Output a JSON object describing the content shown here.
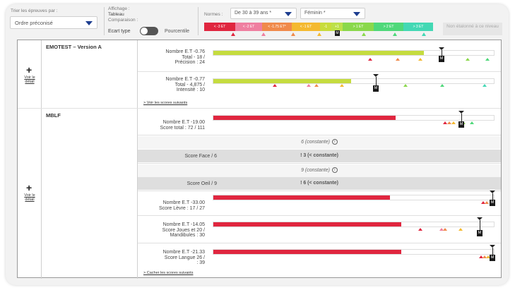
{
  "toolbar": {
    "sort_label": "Trier les épreuves par :",
    "sort_value": "Ordre préconisé",
    "display_label": "Affichage :",
    "display_value": "Tableau",
    "compare_label": "Comparaison :",
    "compare_off": "Ecart type",
    "compare_on": "Pourcentile",
    "norms_label": "Normes :",
    "age_value": "De 30 à 39 ans *",
    "sex_value": "Féminin *",
    "scale": [
      {
        "label": "< -3 ET",
        "color": "#e0263f"
      },
      {
        "label": "< -2 ET",
        "color": "#ef7fa0"
      },
      {
        "label": "< -1.75 ET*",
        "color": "#f08a4b"
      },
      {
        "label": "< -1 ET",
        "color": "#f4b930"
      },
      {
        "label": "-1",
        "color": "#c8dc3c"
      },
      {
        "label": "+1",
        "color": "#bde04a"
      },
      {
        "label": "> 1 ET",
        "color": "#8ad84b"
      },
      {
        "label": "> 2 ET",
        "color": "#4fd87a"
      },
      {
        "label": "> 3 ET",
        "color": "#43d8b4"
      }
    ],
    "marker_label": "M",
    "non_etalonne": "Non étalonné à ce niveau"
  },
  "tests": [
    {
      "plus": "+",
      "voir": "Voir le détail",
      "name": "EMOTEST – Version A",
      "rows": [
        {
          "stats": [
            "Nombre E.T    -0.76",
            "Total -  18 /",
            "Précision :    24"
          ],
          "value": 0.75,
          "color": "#c5dc3f"
        },
        {
          "stats": [
            "Nombre E.T    -0.77",
            "Total - 4,875 /",
            "Intensité :    10"
          ],
          "value": 0.49,
          "color": "#c5dc3f"
        }
      ],
      "link": "> Voir les scores suivants"
    },
    {
      "plus": "+",
      "voir": "Voir le détail",
      "name": "MBLF",
      "main_stats": [
        "Nombre E.T    -19.00",
        "Score total : 72 / 111"
      ],
      "main_value": 0.65,
      "color": "#e0263f",
      "face": {
        "label": "Score Face  / 6",
        "const_value": "6 (constante)",
        "grey": "! 3 (< constante)"
      },
      "oeil": {
        "label": "Score Oeil  / 9",
        "const_value": "9 (constante)",
        "grey": "! 6 (< constante)"
      },
      "rows": [
        {
          "stats": [
            "Nombre E.T    -33.00",
            "Score Lèvre : 17 / 27"
          ],
          "value": 0.63
        },
        {
          "stats": [
            "Nombre E.T    -14.05",
            "Score Joues et 20 /",
            "Mandibules :    30"
          ],
          "value": 0.67
        },
        {
          "stats": [
            "Nombre E.T    -21.33",
            "Score Langue    26 /",
            ":    39"
          ],
          "value": 0.67
        }
      ],
      "link": "> Cacher les scores suivants"
    }
  ]
}
